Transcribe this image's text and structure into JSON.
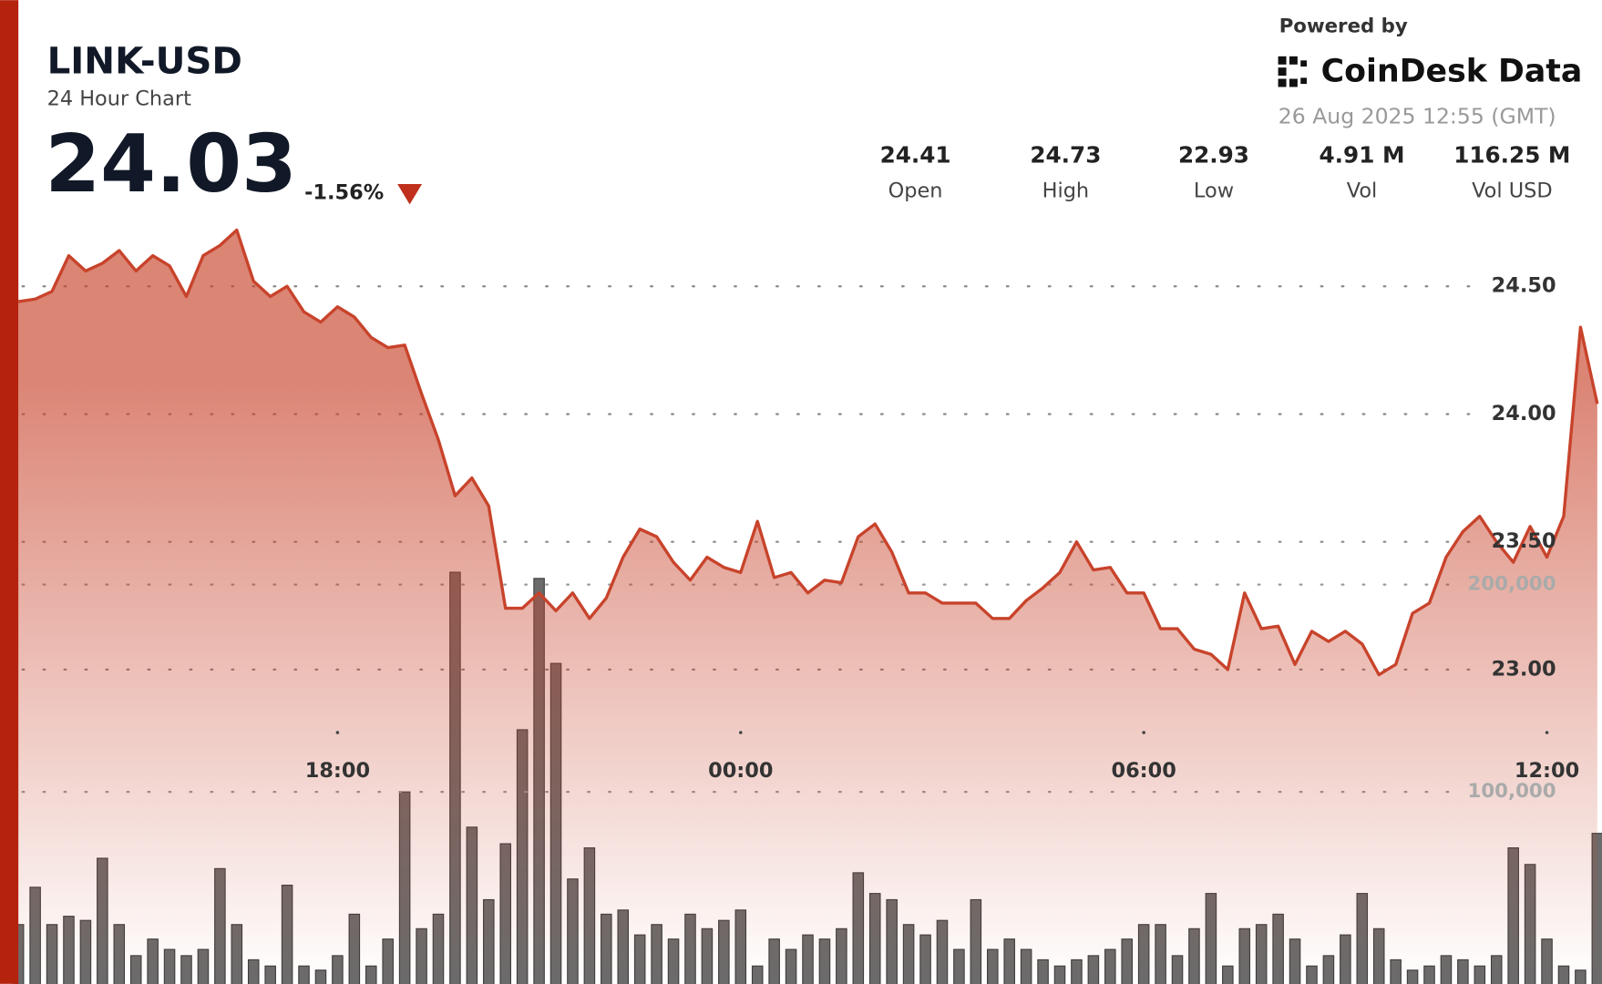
{
  "header": {
    "symbol": "LINK-USD",
    "subtitle": "24 Hour Chart",
    "price": "24.03",
    "change": "-1.56%",
    "powered_by": "Powered by",
    "brand": "CoinDesk Data",
    "timestamp": "26 Aug 2025 12:55 (GMT)",
    "stats": [
      {
        "value": "24.41",
        "label": "Open"
      },
      {
        "value": "24.73",
        "label": "High"
      },
      {
        "value": "22.93",
        "label": "Low"
      },
      {
        "value": "4.91 M",
        "label": "Vol"
      },
      {
        "value": "116.25 M",
        "label": "Vol USD"
      }
    ]
  },
  "chart_data": {
    "type": "line",
    "x": [
      13.25,
      13.5,
      13.75,
      14,
      14.25,
      14.5,
      14.75,
      15,
      15.25,
      15.5,
      15.75,
      16,
      16.25,
      16.5,
      16.75,
      17,
      17.25,
      17.5,
      17.75,
      18,
      18.25,
      18.5,
      18.75,
      19,
      19.25,
      19.5,
      19.75,
      20,
      20.25,
      20.5,
      20.75,
      21,
      21.25,
      21.5,
      21.75,
      22,
      22.25,
      22.5,
      22.75,
      23,
      23.25,
      23.5,
      23.75,
      24,
      24.25,
      24.5,
      24.75,
      25,
      25.25,
      25.5,
      25.75,
      26,
      26.25,
      26.5,
      26.75,
      27,
      27.25,
      27.5,
      27.75,
      28,
      28.25,
      28.5,
      28.75,
      29,
      29.25,
      29.5,
      29.75,
      30,
      30.25,
      30.5,
      30.75,
      31,
      31.25,
      31.5,
      31.75,
      32,
      32.25,
      32.5,
      32.75,
      33,
      33.25,
      33.5,
      33.75,
      34,
      34.25,
      34.5,
      34.75,
      35,
      35.25,
      35.5,
      35.75,
      36,
      36.25,
      36.5,
      36.75
    ],
    "series": [
      {
        "color": "#c8432b",
        "values": [
          24.44,
          24.45,
          24.48,
          24.62,
          24.56,
          24.59,
          24.64,
          24.56,
          24.62,
          24.58,
          24.46,
          24.62,
          24.66,
          24.72,
          24.52,
          24.46,
          24.5,
          24.4,
          24.36,
          24.42,
          24.38,
          24.3,
          24.26,
          24.27,
          24.08,
          23.9,
          23.68,
          23.75,
          23.64,
          23.24,
          23.24,
          23.3,
          23.23,
          23.3,
          23.2,
          23.28,
          23.44,
          23.55,
          23.52,
          23.42,
          23.35,
          23.44,
          23.4,
          23.38,
          23.58,
          23.36,
          23.38,
          23.3,
          23.35,
          23.34,
          23.52,
          23.57,
          23.46,
          23.3,
          23.3,
          23.26,
          23.26,
          23.26,
          23.2,
          23.2,
          23.27,
          23.32,
          23.38,
          23.5,
          23.39,
          23.4,
          23.3,
          23.3,
          23.16,
          23.16,
          23.08,
          23.06,
          23.0,
          23.3,
          23.16,
          23.17,
          23.02,
          23.15,
          23.11,
          23.15,
          23.1,
          22.98,
          23.02,
          23.22,
          23.26,
          23.44,
          23.54,
          23.6,
          23.5,
          23.42,
          23.56,
          23.44,
          23.6,
          24.34,
          24.04
        ]
      },
      {
        "type": "bar",
        "axis": "y2",
        "color": "#6b6b6b",
        "values": [
          36000,
          54000,
          36000,
          40000,
          38000,
          68000,
          36000,
          21000,
          29000,
          24000,
          21000,
          24000,
          63000,
          36000,
          19000,
          16000,
          55000,
          16000,
          14000,
          21000,
          41000,
          16000,
          29000,
          100000,
          34000,
          41000,
          206000,
          83000,
          48000,
          75000,
          130000,
          203000,
          162000,
          58000,
          73000,
          41000,
          43000,
          31000,
          36000,
          29000,
          41000,
          34000,
          38000,
          43000,
          16000,
          29000,
          24000,
          31000,
          29000,
          34000,
          61000,
          51000,
          48000,
          36000,
          31000,
          38000,
          24000,
          48000,
          24000,
          29000,
          24000,
          19000,
          16000,
          19000,
          21000,
          24000,
          29000,
          36000,
          36000,
          21000,
          34000,
          51000,
          16000,
          34000,
          36000,
          41000,
          29000,
          16000,
          21000,
          31000,
          51000,
          34000,
          19000,
          14000,
          16000,
          21000,
          19000,
          16000,
          21000,
          73000,
          65000,
          29000,
          16000,
          14000,
          80000
        ]
      }
    ],
    "xlim": [
      13.25,
      36.82
    ],
    "xticks": [
      {
        "value": 18,
        "label": "18:00"
      },
      {
        "value": 24,
        "label": "00:00"
      },
      {
        "value": 30,
        "label": "06:00"
      },
      {
        "value": 36,
        "label": "12:00"
      }
    ],
    "ylim": [
      21.77,
      25.62
    ],
    "yticks": [
      {
        "value": 23,
        "label": "23.00"
      },
      {
        "value": 23.5,
        "label": "23.50"
      },
      {
        "value": 24,
        "label": "24.00"
      },
      {
        "value": 24.5,
        "label": "24.50"
      }
    ],
    "y2lim": [
      0,
      482000
    ],
    "y2ticks": [
      {
        "value": 100000,
        "label": "100,000"
      },
      {
        "value": 200000,
        "label": "200,000"
      }
    ],
    "grid": true
  }
}
